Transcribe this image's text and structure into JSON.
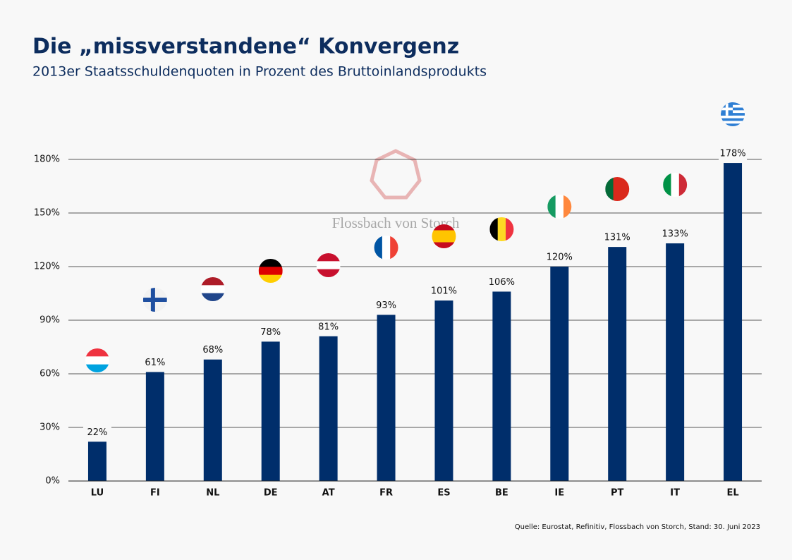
{
  "chart_data": {
    "type": "bar",
    "title": "Die „missverstandene“ Konvergenz",
    "subtitle": "2013er Staatsschuldenquoten  in Prozent des Bruttoinlandsprodukts",
    "categories": [
      "LU",
      "FI",
      "NL",
      "DE",
      "AT",
      "FR",
      "ES",
      "BE",
      "IE",
      "PT",
      "IT",
      "EL"
    ],
    "values": [
      22,
      61,
      68,
      78,
      81,
      93,
      101,
      106,
      120,
      131,
      133,
      178
    ],
    "value_labels": [
      "22%",
      "61%",
      "68%",
      "78%",
      "81%",
      "93%",
      "101%",
      "106%",
      "120%",
      "131%",
      "133%",
      "178%"
    ],
    "color": "#002e6b",
    "ylim": [
      0,
      180
    ],
    "yticks": [
      {
        "value": 0,
        "label": "0%"
      },
      {
        "value": 30,
        "label": "30%"
      },
      {
        "value": 60,
        "label": "60%"
      },
      {
        "value": 90,
        "label": "90%"
      },
      {
        "value": 120,
        "label": "120%"
      },
      {
        "value": 150,
        "label": "150%"
      },
      {
        "value": 180,
        "label": "180%"
      }
    ],
    "grid": true,
    "watermark": "Flossbach von Storch",
    "source": "Quelle: Eurostat, Refinitiv, Flossbach von Storch, Stand: 30. Juni 2023"
  }
}
